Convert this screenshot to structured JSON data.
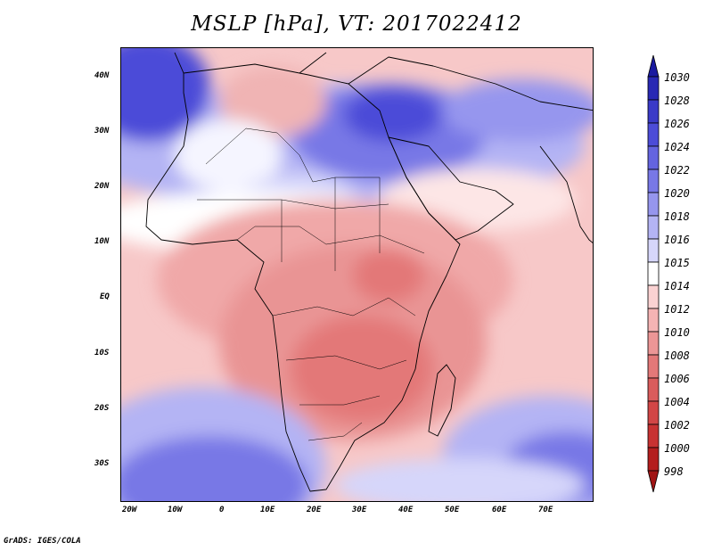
{
  "title": "MSLP [hPa], VT: 2017022412",
  "map": {
    "projection": "lat-lon",
    "lon_range": [
      -25,
      77
    ],
    "lat_range": [
      -37,
      45
    ],
    "lon_ticks": [
      "20W",
      "10W",
      "0",
      "10E",
      "20E",
      "30E",
      "40E",
      "50E",
      "60E",
      "70E"
    ],
    "lat_ticks": [
      "40N",
      "30N",
      "20N",
      "10N",
      "EQ",
      "10S",
      "20S",
      "30S"
    ]
  },
  "colorbar": {
    "levels": [
      "1030",
      "1028",
      "1026",
      "1024",
      "1022",
      "1020",
      "1018",
      "1016",
      "1015",
      "1014",
      "1012",
      "1010",
      "1008",
      "1006",
      "1004",
      "1002",
      "1000",
      "998"
    ],
    "colors": [
      "#1a1aa0",
      "#2828b4",
      "#3a3ac8",
      "#4c4cd8",
      "#6464e0",
      "#7878e6",
      "#9696ee",
      "#b4b4f4",
      "#d6d6fa",
      "#ffffff",
      "#fad2d2",
      "#f5b4b4",
      "#ec9696",
      "#e37878",
      "#da5c5c",
      "#d24646",
      "#c83232",
      "#b41e1e",
      "#a01414"
    ]
  },
  "credit": "GrADS: IGES/COLA"
}
